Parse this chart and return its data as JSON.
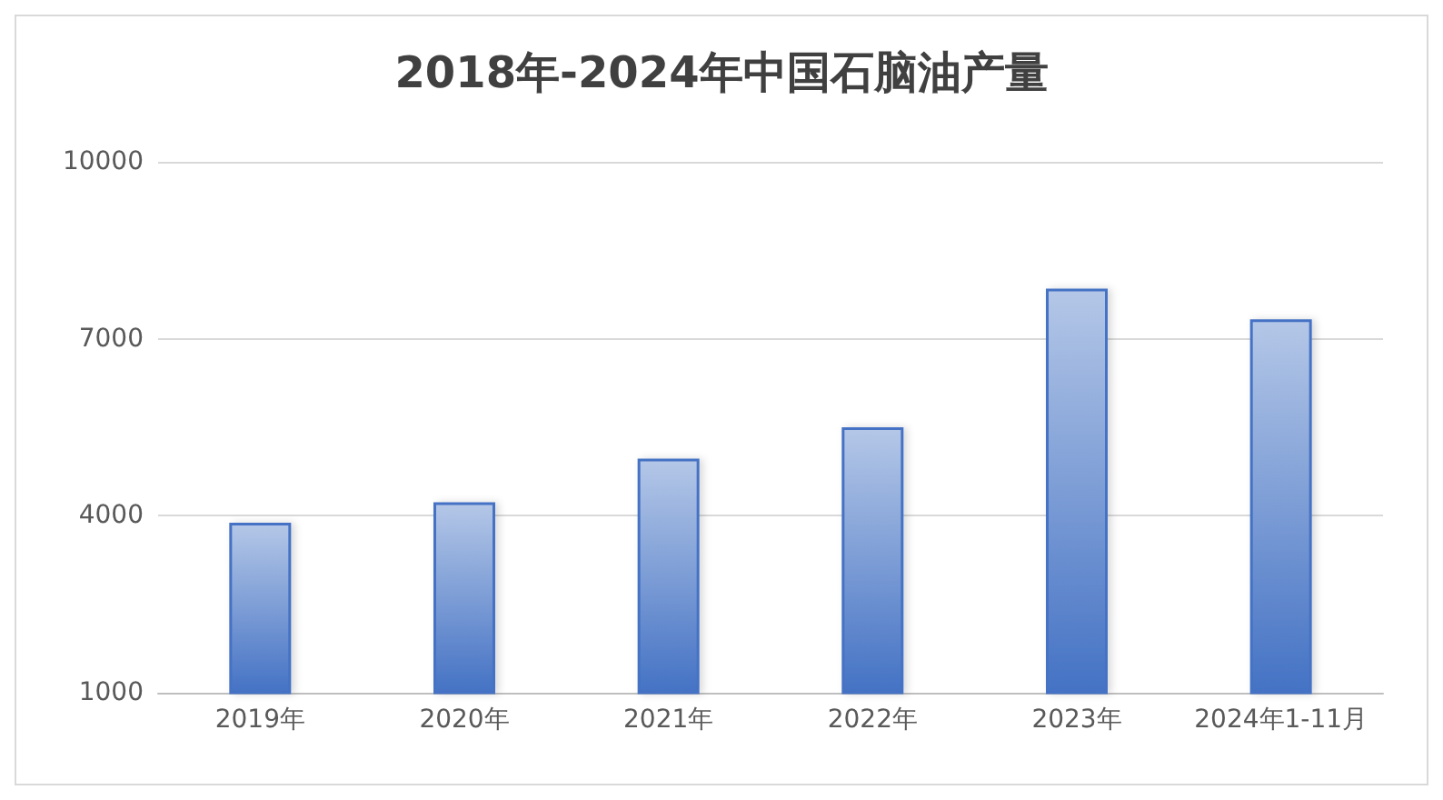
{
  "chart_data": {
    "type": "bar",
    "title": "2018年-2024年中国石脑油产量",
    "categories": [
      "2019年",
      "2020年",
      "2021年",
      "2022年",
      "2023年",
      "2024年1-11月"
    ],
    "values": [
      3880,
      4230,
      4970,
      5500,
      7850,
      7330
    ],
    "color": "#4472c4",
    "ylim": [
      1000,
      10000
    ],
    "yticks": [
      1000,
      4000,
      7000,
      10000
    ],
    "grid": "y"
  }
}
